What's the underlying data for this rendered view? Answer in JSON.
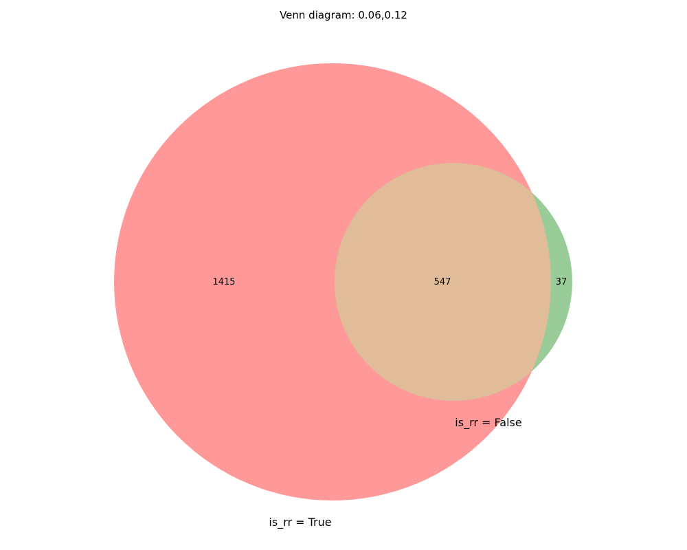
{
  "title": "Venn diagram: 0.06,0.12",
  "sets": [
    {
      "label": "is_rr = True",
      "color": "#ff9999"
    },
    {
      "label": "is_rr = False",
      "color": "#99cc99"
    }
  ],
  "intersection_color": "#e0bc99",
  "counts": {
    "only_a": "1415",
    "both": "547",
    "only_b": "37"
  }
}
